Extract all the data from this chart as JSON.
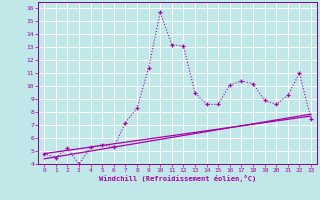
{
  "title": "",
  "xlabel": "Windchill (Refroidissement éolien,°C)",
  "ylabel": "",
  "xlim": [
    -0.5,
    23.5
  ],
  "ylim": [
    4,
    16.5
  ],
  "yticks": [
    4,
    5,
    6,
    7,
    8,
    9,
    10,
    11,
    12,
    13,
    14,
    15,
    16
  ],
  "xticks": [
    0,
    1,
    2,
    3,
    4,
    5,
    6,
    7,
    8,
    9,
    10,
    11,
    12,
    13,
    14,
    15,
    16,
    17,
    18,
    19,
    20,
    21,
    22,
    23
  ],
  "bg_color": "#c0e8e8",
  "line_color": "#aa00aa",
  "grid_color": "#b0d8d8",
  "spine_color": "#880088",
  "line1_x": [
    0,
    1,
    2,
    3,
    4,
    5,
    6,
    7,
    8,
    9,
    10,
    11,
    12,
    13,
    14,
    15,
    16,
    17,
    18,
    19,
    20,
    21,
    22,
    23
  ],
  "line1_y": [
    4.8,
    4.5,
    5.2,
    4.0,
    5.3,
    5.5,
    5.3,
    7.2,
    8.3,
    11.4,
    15.7,
    13.2,
    13.1,
    9.5,
    8.6,
    8.6,
    10.1,
    10.4,
    10.2,
    8.9,
    8.6,
    9.3,
    11.0,
    7.5
  ],
  "line2_x": [
    0,
    23
  ],
  "line2_y": [
    4.8,
    7.7
  ],
  "line3_x": [
    0,
    23
  ],
  "line3_y": [
    4.4,
    7.85
  ]
}
